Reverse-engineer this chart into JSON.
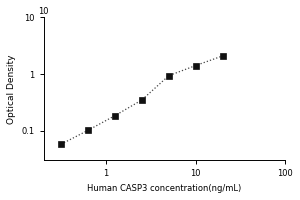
{
  "x": [
    0.313,
    0.625,
    1.25,
    2.5,
    5,
    10,
    20
  ],
  "y": [
    0.058,
    0.102,
    0.185,
    0.35,
    0.94,
    1.42,
    2.1
  ],
  "xlabel": "Human CASP3 concentration(ng/mL)",
  "ylabel": "Optical Density",
  "xlim": [
    0.2,
    100
  ],
  "ylim": [
    0.03,
    10
  ],
  "marker": "s",
  "marker_color": "#111111",
  "line_style": ":",
  "line_color": "#444444",
  "marker_size": 4,
  "background_color": "#ffffff",
  "xlabel_fontsize": 6,
  "ylabel_fontsize": 6.5,
  "tick_fontsize": 6,
  "xticks": [
    1,
    10,
    100
  ],
  "yticks": [
    0.1,
    1,
    10
  ],
  "xtick_labels": [
    "1",
    "10",
    "100"
  ],
  "ytick_labels": [
    "0.1",
    "1",
    "10"
  ]
}
